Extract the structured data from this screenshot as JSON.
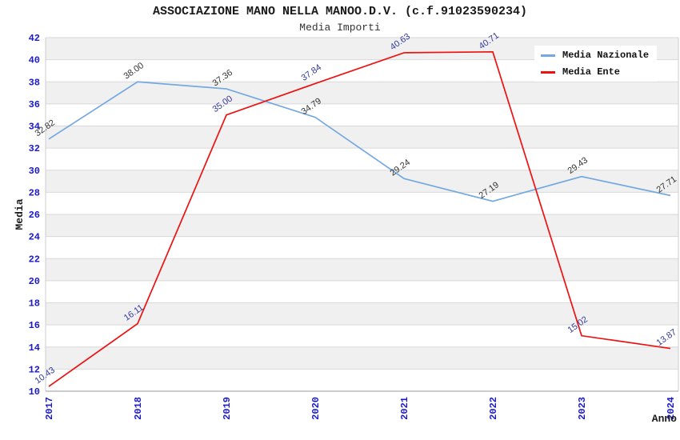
{
  "chart": {
    "title": "ASSOCIAZIONE MANO NELLA MANOO.D.V. (c.f.91023590234)",
    "subtitle": "Media Importi"
  },
  "chart_data": {
    "type": "line",
    "title": "ASSOCIAZIONE MANO NELLA MANOO.D.V. (c.f.91023590234)",
    "subtitle": "Media Importi",
    "xlabel": "Anno",
    "ylabel": "Media",
    "categories": [
      "2017",
      "2018",
      "2019",
      "2020",
      "2021",
      "2022",
      "2023",
      "2024"
    ],
    "series": [
      {
        "name": "Media Nazionale",
        "color": "#73a9e0",
        "label_color": "#333333",
        "values": [
          32.82,
          38.0,
          37.36,
          34.79,
          29.24,
          27.19,
          29.43,
          27.71
        ],
        "labels": [
          "32.82",
          "38.00",
          "37.36",
          "34.79",
          "29.24",
          "27.19",
          "29.43",
          "27.71"
        ]
      },
      {
        "name": "Media Ente",
        "color": "#ee1111",
        "label_color": "#333a99",
        "values": [
          10.43,
          16.11,
          35.0,
          37.84,
          40.63,
          40.71,
          15.02,
          13.87
        ],
        "labels": [
          "10.43",
          "16.11",
          "35.00",
          "37.84",
          "40.63",
          "40.71",
          "15.02",
          "13.87"
        ]
      }
    ],
    "ylim": [
      10,
      42
    ],
    "ytick_step": 2,
    "yticks": [
      10,
      12,
      14,
      16,
      18,
      20,
      22,
      24,
      26,
      28,
      30,
      32,
      34,
      36,
      38,
      40,
      42
    ],
    "grid": true,
    "legend_position": "top-right",
    "band_colors": [
      "#f0f0f0",
      "#ffffff"
    ],
    "gridline_color": "#d9d9d9",
    "axis_line_color": "#999999",
    "plot_border_color": "#cccccc",
    "tick_label_color": "#1a1acc",
    "axis_title_color": "#1a1a1a",
    "data_label_rotation": -35,
    "x_tick_rotation": -90
  }
}
